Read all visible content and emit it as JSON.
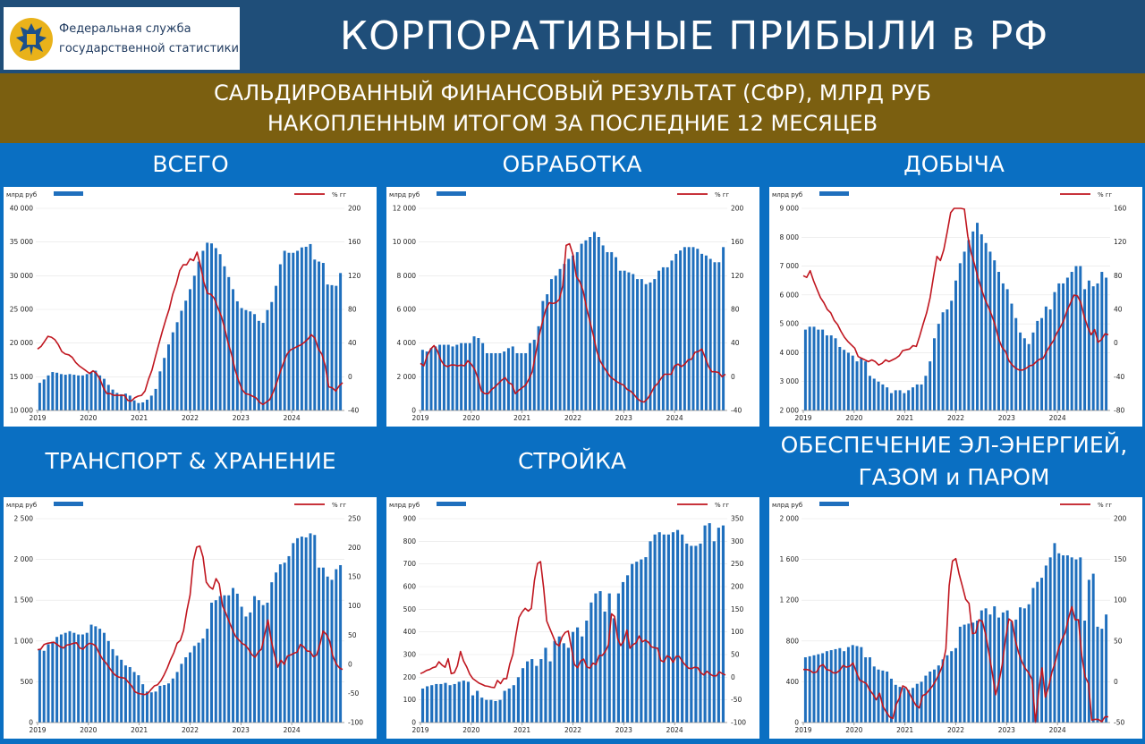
{
  "header": {
    "org_line1": "Федеральная служба",
    "org_line2": "государственной статистики",
    "title": "КОРПОРАТИВНЫЕ ПРИБЫЛИ в РФ"
  },
  "subtitle": {
    "line1": "САЛЬДИРОВАННЫЙ ФИНАНСОВЫЙ РЕЗУЛЬТАТ (СФР), МЛРД РУБ",
    "line2": "НАКОПЛЕННЫМ ИТОГОМ ЗА ПОСЛЕДНИЕ 12 МЕСЯЦЕВ"
  },
  "colors": {
    "bar": "#1f6fbd",
    "line": "#c0161f",
    "header_bg": "#1f4e79",
    "band_bg": "#7b5f10",
    "page_bg": "#0a6fc2"
  },
  "legend": {
    "bars": "млрд руб",
    "line": "% гг"
  },
  "chart_data": [
    {
      "id": "total",
      "title": "ВСЕГО",
      "type": "bar+line",
      "x_years": [
        "2019",
        "2020",
        "2021",
        "2022",
        "2023",
        "2024"
      ],
      "left_axis": {
        "range": [
          10000,
          40000
        ],
        "ticks": [
          "10 000",
          "15 000",
          "20 000",
          "25 000",
          "30 000",
          "35 000",
          "40 000"
        ]
      },
      "right_axis": {
        "range": [
          -40,
          200
        ],
        "ticks": [
          "-40",
          "0",
          "40",
          "80",
          "120",
          "160",
          "200"
        ]
      },
      "bars": [
        14100,
        14600,
        15200,
        15700,
        15600,
        15400,
        15300,
        15400,
        15300,
        15200,
        15200,
        15400,
        15700,
        15900,
        15200,
        14700,
        13800,
        13100,
        12600,
        12400,
        12500,
        12200,
        11500,
        11100,
        11200,
        11600,
        12200,
        13200,
        15800,
        17800,
        19800,
        21600,
        23100,
        24800,
        26300,
        28000,
        30000,
        32100,
        33700,
        34900,
        34800,
        34100,
        33200,
        31400,
        29800,
        28000,
        26200,
        25200,
        24900,
        24700,
        24300,
        23300,
        23000,
        24900,
        26100,
        28500,
        31700,
        33700,
        33400,
        33400,
        33700,
        34200,
        34300,
        34700,
        32400,
        32100,
        31900,
        28700,
        28600,
        28500,
        30400
      ],
      "line": [
        33,
        36,
        42,
        48,
        47,
        44,
        38,
        30,
        27,
        26,
        23,
        17,
        13,
        10,
        7,
        4,
        7,
        4,
        -3,
        -13,
        -20,
        -20,
        -22,
        -22,
        -22,
        -22,
        -28,
        -29,
        -25,
        -23,
        -22,
        -17,
        -3,
        8,
        24,
        39,
        54,
        68,
        81,
        98,
        110,
        126,
        133,
        133,
        140,
        138,
        148,
        132,
        112,
        99,
        98,
        93,
        82,
        72,
        57,
        40,
        26,
        8,
        -5,
        -15,
        -20,
        -21,
        -23,
        -25,
        -30,
        -33,
        -30,
        -27,
        -18,
        -7,
        6,
        17,
        27,
        32,
        34,
        36,
        38,
        41,
        45,
        50,
        46,
        33,
        27,
        13,
        -12,
        -13,
        -17,
        -11,
        -7
      ]
    },
    {
      "id": "manufacturing",
      "title": "ОБРАБОТКА",
      "type": "bar+line",
      "x_years": [
        "2019",
        "2020",
        "2021",
        "2022",
        "2023",
        "2024"
      ],
      "left_axis": {
        "range": [
          0,
          12000
        ],
        "ticks": [
          "0",
          "2 000",
          "4 000",
          "6 000",
          "8 000",
          "10 000",
          "12 000"
        ]
      },
      "right_axis": {
        "range": [
          -40,
          200
        ],
        "ticks": [
          "-40",
          "0",
          "40",
          "80",
          "120",
          "160",
          "200"
        ]
      },
      "bars": [
        3600,
        3500,
        3700,
        3800,
        3900,
        3900,
        3900,
        3800,
        3900,
        4000,
        4000,
        4000,
        4400,
        4300,
        4000,
        3400,
        3400,
        3400,
        3400,
        3500,
        3700,
        3800,
        3400,
        3400,
        3400,
        4000,
        4200,
        5000,
        6500,
        6900,
        7800,
        8000,
        8400,
        8700,
        9000,
        9200,
        9400,
        9900,
        10100,
        10300,
        10600,
        10300,
        9800,
        9400,
        9400,
        9100,
        8300,
        8300,
        8200,
        8100,
        7800,
        7800,
        7500,
        7600,
        7800,
        8300,
        8500,
        8500,
        8900,
        9300,
        9500,
        9700,
        9700,
        9700,
        9600,
        9300,
        9200,
        9000,
        8800,
        8800,
        9700
      ],
      "line": [
        16,
        13,
        25,
        33,
        37,
        31,
        20,
        14,
        12,
        14,
        14,
        13,
        14,
        13,
        19,
        15,
        9,
        -2,
        -17,
        -20,
        -20,
        -15,
        -12,
        -8,
        -4,
        -1,
        -7,
        -9,
        -20,
        -16,
        -13,
        -10,
        -3,
        6,
        27,
        48,
        65,
        80,
        88,
        87,
        88,
        92,
        108,
        156,
        158,
        145,
        119,
        113,
        102,
        82,
        66,
        50,
        31,
        19,
        12,
        6,
        0,
        -3,
        -6,
        -8,
        -10,
        -15,
        -17,
        -21,
        -26,
        -29,
        -30,
        -26,
        -20,
        -12,
        -8,
        -2,
        3,
        3,
        3,
        13,
        15,
        12,
        15,
        20,
        21,
        29,
        30,
        33,
        23,
        12,
        6,
        6,
        5,
        0,
        3
      ]
    },
    {
      "id": "mining",
      "title": "ДОБЫЧА",
      "type": "bar+line",
      "x_years": [
        "2019",
        "2020",
        "2021",
        "2022",
        "2023",
        "2024"
      ],
      "left_axis": {
        "range": [
          2000,
          9000
        ],
        "ticks": [
          "2 000",
          "3 000",
          "4 000",
          "5 000",
          "6 000",
          "7 000",
          "8 000",
          "9 000"
        ]
      },
      "right_axis": {
        "range": [
          -80,
          160
        ],
        "ticks": [
          "-80",
          "-40",
          "0",
          "40",
          "80",
          "120",
          "160"
        ]
      },
      "bars": [
        4800,
        4900,
        4900,
        4800,
        4800,
        4600,
        4600,
        4500,
        4200,
        4100,
        4000,
        3900,
        3700,
        3800,
        3700,
        3200,
        3100,
        3000,
        2900,
        2800,
        2600,
        2700,
        2700,
        2600,
        2700,
        2800,
        2900,
        2900,
        3200,
        3700,
        4500,
        5000,
        5400,
        5500,
        5800,
        6500,
        7100,
        7500,
        7900,
        8200,
        8500,
        8100,
        7800,
        7500,
        7200,
        6800,
        6400,
        6200,
        5700,
        5200,
        4700,
        4500,
        4300,
        4700,
        5100,
        5200,
        5600,
        5500,
        6100,
        6400,
        6400,
        6600,
        6800,
        7000,
        7000,
        6200,
        6500,
        6300,
        6400,
        6800,
        6600
      ],
      "line": [
        80,
        78,
        86,
        74,
        64,
        54,
        48,
        40,
        36,
        27,
        22,
        14,
        7,
        2,
        -2,
        -6,
        -16,
        -18,
        -20,
        -22,
        -20,
        -22,
        -26,
        -24,
        -20,
        -22,
        -20,
        -18,
        -15,
        -9,
        -8,
        -7,
        -3,
        -4,
        9,
        23,
        36,
        54,
        79,
        103,
        98,
        111,
        132,
        155,
        161,
        166,
        167,
        159,
        127,
        107,
        93,
        77,
        64,
        52,
        43,
        33,
        21,
        5,
        -5,
        -10,
        -21,
        -26,
        -30,
        -32,
        -32,
        -30,
        -27,
        -26,
        -22,
        -19,
        -18,
        -10,
        -3,
        3,
        12,
        19,
        27,
        39,
        48,
        57,
        56,
        48,
        31,
        19,
        10,
        16,
        1,
        4,
        11,
        10
      ]
    },
    {
      "id": "transport",
      "title": "ТРАНСПОРТ & ХРАНЕНИЕ",
      "type": "bar+line",
      "x_years": [
        "2019",
        "2020",
        "2021",
        "2022",
        "2023",
        "2024"
      ],
      "left_axis": {
        "range": [
          0,
          2500
        ],
        "ticks": [
          "0",
          "500",
          "1 000",
          "1 500",
          "2 000",
          "2 500"
        ]
      },
      "right_axis": {
        "range": [
          -100,
          250
        ],
        "ticks": [
          "-100",
          "-50",
          "0",
          "50",
          "100",
          "150",
          "200",
          "250"
        ]
      },
      "bars": [
        900,
        880,
        960,
        990,
        1050,
        1080,
        1100,
        1120,
        1100,
        1080,
        1080,
        1100,
        1200,
        1180,
        1150,
        1100,
        1000,
        900,
        820,
        770,
        700,
        680,
        620,
        580,
        470,
        380,
        370,
        380,
        450,
        460,
        480,
        540,
        620,
        720,
        800,
        860,
        940,
        980,
        1030,
        1150,
        1470,
        1500,
        1550,
        1560,
        1560,
        1650,
        1580,
        1420,
        1300,
        1350,
        1550,
        1500,
        1440,
        1470,
        1720,
        1840,
        1940,
        1960,
        2040,
        2200,
        2260,
        2280,
        2270,
        2320,
        2300,
        1900,
        1900,
        1790,
        1750,
        1880,
        1930
      ],
      "line": [
        25,
        26,
        34,
        36,
        37,
        38,
        34,
        30,
        28,
        33,
        34,
        36,
        37,
        28,
        26,
        32,
        36,
        35,
        31,
        19,
        9,
        3,
        -5,
        -13,
        -19,
        -22,
        -23,
        -24,
        -31,
        -37,
        -47,
        -50,
        -51,
        -52,
        -50,
        -43,
        -37,
        -35,
        -28,
        -18,
        -6,
        8,
        20,
        36,
        41,
        58,
        92,
        119,
        177,
        201,
        203,
        184,
        141,
        133,
        129,
        147,
        138,
        100,
        88,
        74,
        60,
        48,
        42,
        36,
        33,
        26,
        17,
        12,
        21,
        26,
        51,
        76,
        41,
        17,
        -5,
        7,
        0,
        14,
        16,
        19,
        21,
        34,
        30,
        23,
        22,
        13,
        16,
        34,
        57,
        51,
        40,
        14,
        1,
        -6,
        -9
      ]
    },
    {
      "id": "construction",
      "title": "СТРОЙКА",
      "type": "bar+line",
      "x_years": [
        "2019",
        "2020",
        "2021",
        "2022",
        "2023",
        "2024"
      ],
      "left_axis": {
        "range": [
          0,
          900
        ],
        "ticks": [
          "0",
          "100",
          "200",
          "300",
          "400",
          "500",
          "600",
          "700",
          "800",
          "900"
        ]
      },
      "right_axis": {
        "range": [
          -100,
          350
        ],
        "ticks": [
          "-100",
          "-50",
          "0",
          "50",
          "100",
          "150",
          "200",
          "250",
          "300",
          "350"
        ]
      },
      "bars": [
        150,
        160,
        165,
        170,
        170,
        175,
        165,
        170,
        180,
        185,
        180,
        120,
        140,
        110,
        100,
        100,
        95,
        100,
        140,
        150,
        165,
        200,
        240,
        270,
        280,
        250,
        280,
        330,
        270,
        360,
        380,
        350,
        330,
        400,
        420,
        380,
        450,
        530,
        570,
        580,
        490,
        570,
        460,
        570,
        620,
        650,
        700,
        710,
        720,
        730,
        800,
        830,
        840,
        830,
        830,
        840,
        850,
        830,
        790,
        780,
        780,
        790,
        870,
        880,
        800,
        860,
        870
      ],
      "line": [
        8,
        11,
        15,
        17,
        21,
        23,
        34,
        27,
        22,
        41,
        8,
        10,
        25,
        57,
        36,
        23,
        7,
        -3,
        -8,
        -13,
        -16,
        -19,
        -20,
        -22,
        -23,
        -7,
        -14,
        -3,
        -3,
        29,
        50,
        94,
        132,
        144,
        152,
        146,
        152,
        213,
        251,
        255,
        196,
        124,
        107,
        91,
        74,
        69,
        89,
        99,
        102,
        64,
        28,
        21,
        36,
        40,
        23,
        20,
        31,
        28,
        48,
        48,
        57,
        71,
        140,
        134,
        86,
        70,
        80,
        104,
        64,
        72,
        76,
        91,
        78,
        82,
        77,
        67,
        65,
        64,
        37,
        34,
        47,
        44,
        33,
        46,
        46,
        35,
        27,
        20,
        19,
        22,
        21,
        10,
        5,
        13,
        7,
        3,
        3,
        12,
        8,
        5
      ]
    },
    {
      "id": "utilities",
      "title": "ОБЕСПЕЧЕНИЕ ЭЛ-ЭНЕРГИЕЙ, ГАЗОМ и ПАРОМ",
      "type": "bar+line",
      "x_years": [
        "2019",
        "2020",
        "2021",
        "2022",
        "2023",
        "2024"
      ],
      "left_axis": {
        "range": [
          0,
          2000
        ],
        "ticks": [
          "0",
          "400",
          "800",
          "1 200",
          "1 600",
          "2 000"
        ]
      },
      "right_axis": {
        "range": [
          -50,
          200
        ],
        "ticks": [
          "-50",
          "0",
          "50",
          "100",
          "150",
          "200"
        ]
      },
      "bars": [
        640,
        650,
        660,
        670,
        680,
        700,
        710,
        720,
        730,
        700,
        740,
        760,
        750,
        740,
        640,
        640,
        550,
        520,
        510,
        500,
        430,
        370,
        350,
        340,
        320,
        340,
        380,
        400,
        460,
        500,
        520,
        560,
        620,
        660,
        700,
        730,
        940,
        960,
        970,
        980,
        1000,
        1100,
        1120,
        1060,
        1140,
        1030,
        1080,
        1100,
        990,
        1010,
        1130,
        1120,
        1160,
        1320,
        1380,
        1420,
        1540,
        1620,
        1760,
        1660,
        1640,
        1640,
        1620,
        1600,
        1620,
        1000,
        1400,
        1460,
        940,
        920,
        1060
      ],
      "line": [
        15,
        15,
        14,
        11,
        12,
        19,
        21,
        15,
        14,
        11,
        11,
        14,
        20,
        18,
        19,
        23,
        12,
        2,
        0,
        -2,
        -10,
        -15,
        -22,
        -14,
        -30,
        -37,
        -43,
        -45,
        -28,
        -20,
        -5,
        -7,
        -14,
        -22,
        -29,
        -32,
        -17,
        -15,
        -10,
        -5,
        2,
        10,
        20,
        40,
        118,
        148,
        151,
        132,
        117,
        101,
        96,
        59,
        60,
        76,
        74,
        58,
        35,
        11,
        -16,
        0,
        21,
        53,
        77,
        74,
        50,
        35,
        24,
        16,
        11,
        3,
        -50,
        -12,
        17,
        -19,
        -6,
        12,
        24,
        41,
        52,
        60,
        78,
        92,
        76,
        76,
        32,
        6,
        -2,
        -47,
        -46,
        -46,
        -49,
        -43,
        -43
      ]
    }
  ]
}
